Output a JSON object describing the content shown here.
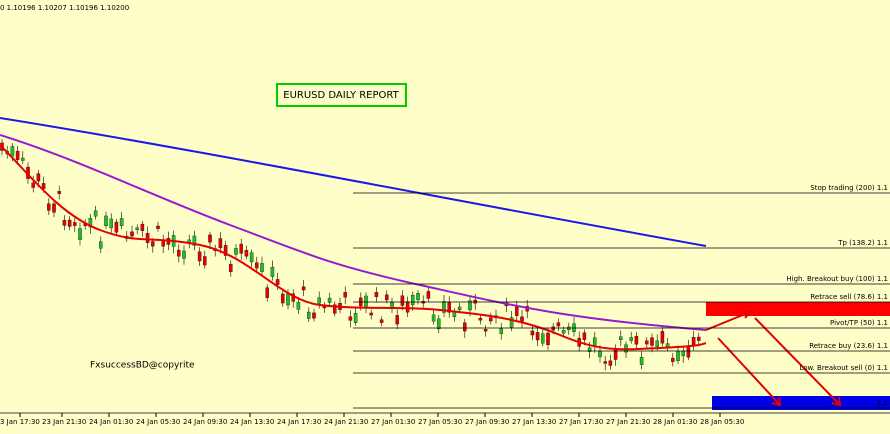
{
  "header": {
    "ohlc": "0  1.10196 1.10207 1.10196 1.10200"
  },
  "report_title": "EURUSD DAILY REPORT",
  "watermark": "FxsuccessBD@copyrite",
  "levels": [
    "Stop trading (200)  1.1",
    "Tp (138.2)  1.1",
    "High. Breakout buy (100)  1.1",
    "Retrace sell (78.6)  1.1",
    "Pivot/TP (50)  1.1",
    "Retrace buy (23.6)  1.1",
    "Low. Breakout sell (0)  1.1",
    "1.1"
  ],
  "time_labels": [
    "3 Jan 17:30",
    "23 Jan 21:30",
    "24 Jan 01:30",
    "24 Jan 05:30",
    "24 Jan 09:30",
    "24 Jan 13:30",
    "24 Jan 17:30",
    "24 Jan 21:30",
    "27 Jan 01:30",
    "27 Jan 05:30",
    "27 Jan 09:30",
    "27 Jan 13:30",
    "27 Jan 17:30",
    "27 Jan 21:30",
    "28 Jan 01:30",
    "28 Jan 05:30"
  ]
}
